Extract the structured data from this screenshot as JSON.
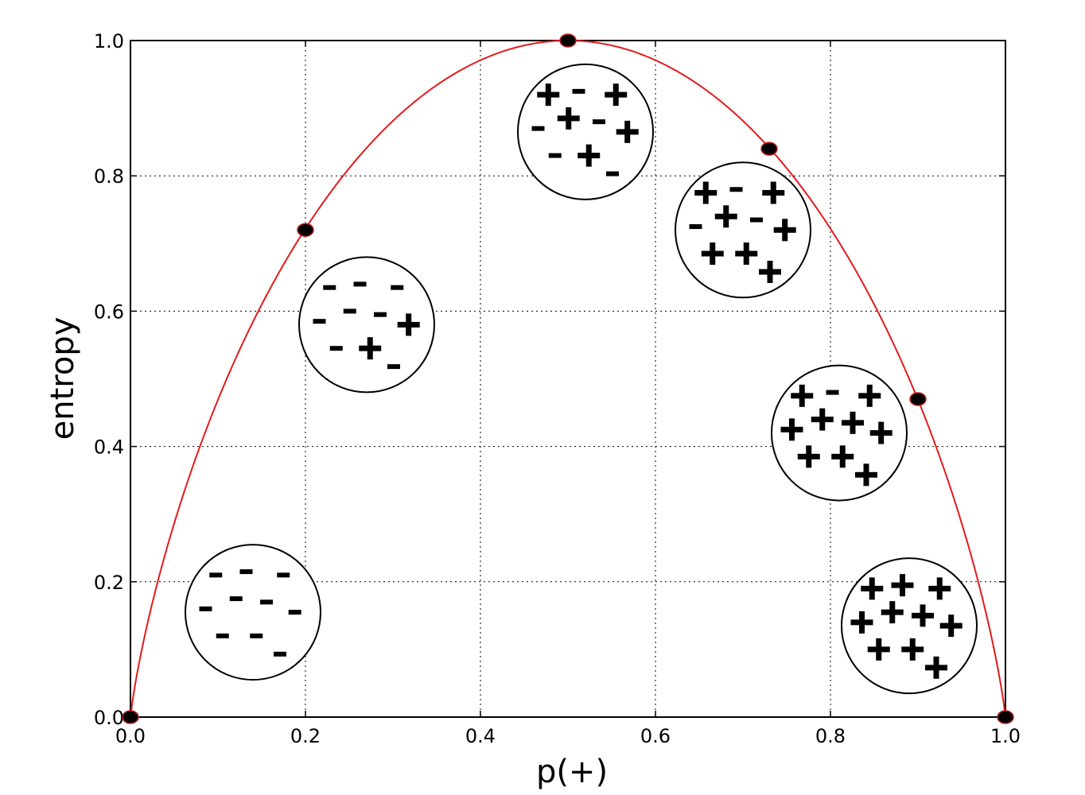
{
  "chart_data": {
    "type": "line",
    "title": "",
    "xlabel": "p(+)",
    "ylabel": "entropy",
    "xlim": [
      0.0,
      1.0
    ],
    "ylim": [
      0.0,
      1.0
    ],
    "grid": true,
    "grid_style": "dotted",
    "line_color": "#e41a1c",
    "marker_color": "#000000",
    "x_ticks": [
      "0.0",
      "0.2",
      "0.4",
      "0.6",
      "0.8",
      "1.0"
    ],
    "y_ticks": [
      "0.0",
      "0.2",
      "0.4",
      "0.6",
      "0.8",
      "1.0"
    ],
    "series": [
      {
        "curve": "binary entropy H(p) = -p·log2(p) - (1-p)·log2(1-p)",
        "points": [
          {
            "x": 0.0,
            "y": 0.0
          },
          {
            "x": 0.2,
            "y": 0.72
          },
          {
            "x": 0.5,
            "y": 1.0
          },
          {
            "x": 0.73,
            "y": 0.84
          },
          {
            "x": 0.9,
            "y": 0.47
          },
          {
            "x": 1.0,
            "y": 0.0
          }
        ]
      }
    ],
    "annotations": [
      {
        "shape": "circle",
        "center": [
          0.14,
          0.155
        ],
        "counts": {
          "plus": 0,
          "minus": 10
        }
      },
      {
        "shape": "circle",
        "center": [
          0.27,
          0.58
        ],
        "counts": {
          "plus": 2,
          "minus": 8
        }
      },
      {
        "shape": "circle",
        "center": [
          0.52,
          0.865
        ],
        "counts": {
          "plus": 5,
          "minus": 5
        }
      },
      {
        "shape": "circle",
        "center": [
          0.7,
          0.72
        ],
        "counts": {
          "plus": 7,
          "minus": 3
        }
      },
      {
        "shape": "circle",
        "center": [
          0.81,
          0.42
        ],
        "counts": {
          "plus": 9,
          "minus": 1
        }
      },
      {
        "shape": "circle",
        "center": [
          0.89,
          0.135
        ],
        "counts": {
          "plus": 10,
          "minus": 0
        }
      }
    ],
    "plus_symbol": "+",
    "minus_symbol": "-"
  }
}
